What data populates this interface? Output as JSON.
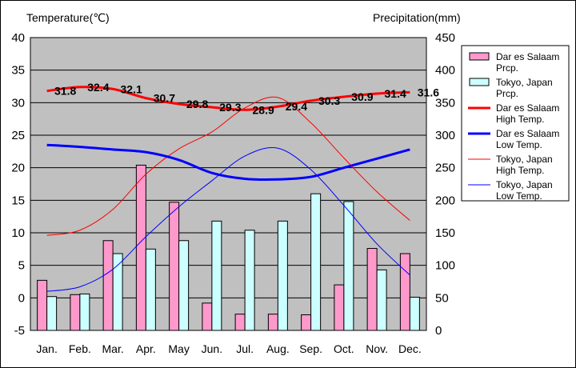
{
  "chart_data": {
    "type": "bar+line",
    "left_axis_title": "Temperature(℃)",
    "right_axis_title": "Precipitation(mm)",
    "left_ylim": [
      -5,
      40
    ],
    "left_ticks": [
      -5,
      0,
      5,
      10,
      15,
      20,
      25,
      30,
      35,
      40
    ],
    "right_ylim": [
      0,
      450
    ],
    "right_ticks": [
      0,
      50,
      100,
      150,
      200,
      250,
      300,
      350,
      400,
      450
    ],
    "categories": [
      "Jan.",
      "Feb.",
      "Mar.",
      "Apr.",
      "May",
      "Jun.",
      "Jul.",
      "Aug.",
      "Sep.",
      "Oct.",
      "Nov.",
      "Dec."
    ],
    "grid": true,
    "legend_position": "right",
    "bars": [
      {
        "name": "Dar es Salaam\nPrcp.",
        "color": "#ff99cc",
        "values": [
          77,
          55,
          138,
          254,
          197,
          42,
          25,
          25,
          24,
          70,
          126,
          118
        ]
      },
      {
        "name": "Tokyo, Japan\nPrcp.",
        "color": "#ccffff",
        "values": [
          52,
          56,
          118,
          125,
          138,
          168,
          154,
          168,
          210,
          198,
          93,
          51
        ]
      }
    ],
    "lines": [
      {
        "name": "Dar es Salaam\nHigh Temp.",
        "color": "#ff0000",
        "width": 3,
        "values": [
          31.8,
          32.4,
          32.1,
          30.7,
          29.8,
          29.3,
          28.9,
          29.4,
          30.3,
          30.9,
          31.4,
          31.6
        ],
        "labels": [
          "31.8",
          "32.4",
          "32.1",
          "30.7",
          "29.8",
          "29.3",
          "28.9",
          "29.4",
          "30.3",
          "30.9",
          "31.4",
          "31.6"
        ]
      },
      {
        "name": "Dar es Salaam\nLow Temp.",
        "color": "#0000ff",
        "width": 3,
        "values": [
          23.5,
          23.2,
          22.8,
          22.4,
          21.2,
          19.2,
          18.3,
          18.2,
          18.6,
          20.0,
          21.4,
          22.8
        ]
      },
      {
        "name": "Tokyo, Japan\nHigh Temp.",
        "color": "#ff0000",
        "width": 1,
        "values": [
          9.6,
          10.4,
          13.6,
          19.0,
          22.9,
          25.5,
          29.2,
          30.8,
          26.9,
          21.5,
          16.3,
          11.9
        ]
      },
      {
        "name": "Tokyo, Japan\nLow Temp.",
        "color": "#0000ff",
        "width": 1,
        "values": [
          1.0,
          1.7,
          4.4,
          9.4,
          14.0,
          18.0,
          21.8,
          23.0,
          19.7,
          14.2,
          8.3,
          3.5
        ]
      }
    ]
  }
}
